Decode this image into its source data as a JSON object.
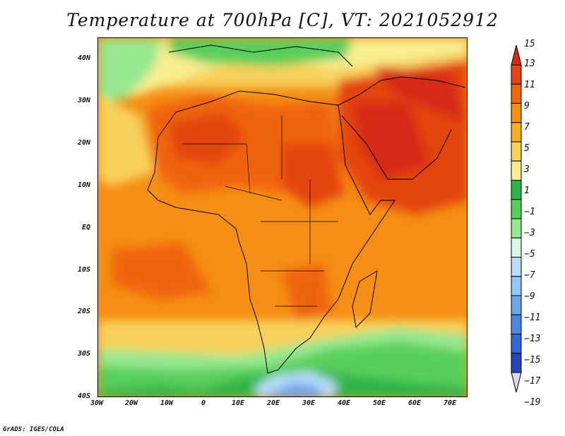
{
  "title": "Temperature at 700hPa [C], VT: 2021052912",
  "credit": "GrADS: IGES/COLA",
  "map": {
    "lat_labels": [
      "40N",
      "30N",
      "20N",
      "10N",
      "EQ",
      "10S",
      "20S",
      "30S",
      "40S"
    ],
    "lon_labels": [
      "30W",
      "20W",
      "10W",
      "0",
      "10E",
      "20E",
      "30E",
      "40E",
      "50E",
      "60E",
      "70E"
    ],
    "extent": {
      "lon_min": -30,
      "lon_max": 75,
      "lat_min": -40,
      "lat_max": 45
    }
  },
  "colorbar": {
    "labels": [
      "15",
      "13",
      "11",
      "9",
      "7",
      "5",
      "3",
      "1",
      "−1",
      "−3",
      "−5",
      "−7",
      "−9",
      "−11",
      "−13",
      "−15",
      "−17",
      "−19"
    ],
    "colors": [
      "#d62a14",
      "#e4440f",
      "#f0640c",
      "#f58e14",
      "#f7ad2a",
      "#f8d05c",
      "#f8ee90",
      "#2fb34a",
      "#58cf5c",
      "#96e890",
      "#d8f7e4",
      "#b9def9",
      "#93c7f4",
      "#6ea6eb",
      "#4f86e2",
      "#3466d9",
      "#2248ba",
      "#0c1a7a"
    ]
  }
}
